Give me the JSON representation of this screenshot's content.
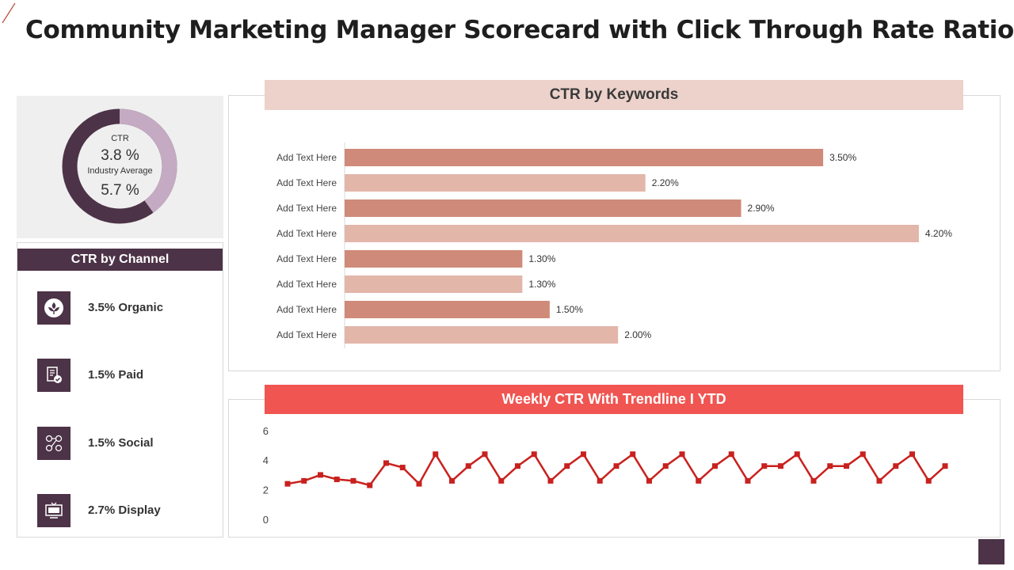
{
  "title": "Community Marketing Manager Scorecard with Click Through Rate Ratio",
  "colors": {
    "plum": "#4d3347",
    "donut_light": "#c4aac2",
    "bar_dark": "#d08a79",
    "bar_light": "#e3b6aa",
    "keywords_header": "#ecd2ca",
    "weekly_header": "#f05551",
    "line": "#c9211e"
  },
  "donut": {
    "ctr_label": "CTR",
    "ctr_value": "3.8 %",
    "industry_label": "Industry Average",
    "industry_value": "5.7 %",
    "ctr_fraction": 0.4
  },
  "channels": {
    "title": "CTR by Channel",
    "items": [
      {
        "label": "3.5% Organic",
        "icon": "leaf-icon"
      },
      {
        "label": "1.5% Paid",
        "icon": "receipt-check-icon"
      },
      {
        "label": "1.5% Social",
        "icon": "people-network-icon"
      },
      {
        "label": "2.7% Display",
        "icon": "monitor-icon"
      }
    ]
  },
  "keywords": {
    "title": "CTR by Keywords"
  },
  "weekly": {
    "title": "Weekly CTR With  Trendline I YTD"
  },
  "chart_data": [
    {
      "type": "bar",
      "orientation": "horizontal",
      "title": "CTR by Keywords",
      "categories": [
        "Add Text Here",
        "Add Text Here",
        "Add Text Here",
        "Add Text Here",
        "Add Text Here",
        "Add Text Here",
        "Add Text Here",
        "Add Text Here"
      ],
      "values": [
        3.5,
        2.2,
        2.9,
        4.2,
        1.3,
        1.3,
        1.5,
        2.0
      ],
      "labels": [
        "3.50%",
        "2.20%",
        "2.90%",
        "4.20%",
        "1.30%",
        "1.30%",
        "1.50%",
        "2.00%"
      ],
      "xlim": [
        0,
        4.5
      ],
      "bar_colors": [
        "#d08a79",
        "#e3b6aa"
      ]
    },
    {
      "type": "line",
      "title": "Weekly CTR With  Trendline I YTD",
      "ylim": [
        0,
        6
      ],
      "yticks": [
        0,
        2,
        4,
        6
      ],
      "grid": false,
      "series": [
        {
          "values": [
            2.4,
            2.6,
            3.0,
            2.7,
            2.6,
            2.3,
            3.8,
            3.5,
            2.4,
            4.4,
            2.6,
            3.6,
            4.4,
            2.6,
            3.6,
            4.4,
            2.6,
            3.6,
            4.4,
            2.6,
            3.6,
            4.4,
            2.6,
            3.6,
            4.4,
            2.6,
            3.6,
            4.4,
            2.6,
            3.6,
            3.6,
            4.4,
            2.6,
            3.6,
            3.6,
            4.4,
            2.6,
            3.6,
            4.4,
            2.6,
            3.6
          ]
        }
      ]
    }
  ]
}
